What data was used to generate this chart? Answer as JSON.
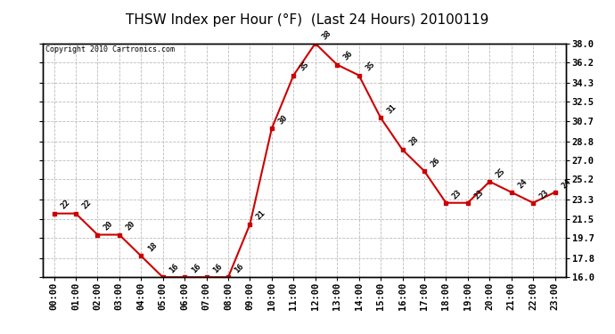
{
  "title": "THSW Index per Hour (°F)  (Last 24 Hours) 20100119",
  "copyright": "Copyright 2010 Cartronics.com",
  "hours": [
    "00:00",
    "01:00",
    "02:00",
    "03:00",
    "04:00",
    "05:00",
    "06:00",
    "07:00",
    "08:00",
    "09:00",
    "10:00",
    "11:00",
    "12:00",
    "13:00",
    "14:00",
    "15:00",
    "16:00",
    "17:00",
    "18:00",
    "19:00",
    "20:00",
    "21:00",
    "22:00",
    "23:00"
  ],
  "values": [
    22,
    22,
    20,
    20,
    18,
    16,
    16,
    16,
    16,
    21,
    30,
    35,
    38,
    36,
    35,
    31,
    28,
    26,
    23,
    23,
    25,
    24,
    23,
    24
  ],
  "line_color": "#cc0000",
  "marker_color": "#cc0000",
  "bg_color": "#ffffff",
  "grid_color": "#bbbbbb",
  "ylim_min": 16.0,
  "ylim_max": 38.0,
  "yticks": [
    16.0,
    17.8,
    19.7,
    21.5,
    23.3,
    25.2,
    27.0,
    28.8,
    30.7,
    32.5,
    34.3,
    36.2,
    38.0
  ],
  "title_fontsize": 11,
  "label_fontsize": 6.5,
  "tick_fontsize": 7.5,
  "copyright_fontsize": 6
}
